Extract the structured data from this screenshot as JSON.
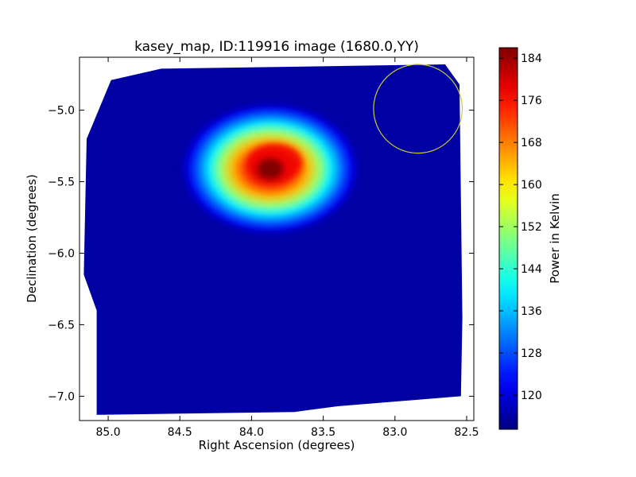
{
  "chart_data": {
    "type": "heatmap",
    "title": "kasey_map, ID:119916 image (1680.0,YY)",
    "xlabel": "Right Ascension (degrees)",
    "ylabel": "Declination (degrees)",
    "xlim": [
      85.2,
      82.45
    ],
    "ylim": [
      -7.17,
      -4.63
    ],
    "x_ticks": [
      85.0,
      84.5,
      84.0,
      83.5,
      83.0,
      82.5
    ],
    "x_tick_labels": [
      "85.0",
      "84.5",
      "84.0",
      "83.5",
      "83.0",
      "82.5"
    ],
    "y_ticks": [
      -5.0,
      -5.5,
      -6.0,
      -6.5,
      -7.0
    ],
    "y_tick_labels": [
      "−5.0",
      "−5.5",
      "−6.0",
      "−6.5",
      "−7.0"
    ],
    "grid": false,
    "colormap": "jet",
    "colorbar": {
      "label": "Power in Kelvin",
      "min": 113.5,
      "max": 186.0,
      "ticks": [
        120,
        128,
        136,
        144,
        152,
        160,
        168,
        176,
        184
      ],
      "tick_labels": [
        "120",
        "128",
        "136",
        "144",
        "152",
        "160",
        "168",
        "176",
        "184"
      ]
    },
    "background_level": 116,
    "peak": {
      "ra": 83.87,
      "dec": -5.41,
      "value": 186
    },
    "footprint": [
      [
        84.63,
        -4.71
      ],
      [
        82.65,
        -4.68
      ],
      [
        82.55,
        -4.82
      ],
      [
        82.53,
        -6.45
      ],
      [
        82.54,
        -7.0
      ],
      [
        83.4,
        -7.07
      ],
      [
        83.7,
        -7.11
      ],
      [
        85.08,
        -7.13
      ],
      [
        85.08,
        -6.4
      ],
      [
        85.17,
        -6.15
      ],
      [
        85.15,
        -5.2
      ],
      [
        84.98,
        -4.79
      ]
    ],
    "overlay_circle": {
      "ra": 82.84,
      "dec": -4.99,
      "radius_deg": 0.31,
      "color": "#cccc33"
    }
  }
}
